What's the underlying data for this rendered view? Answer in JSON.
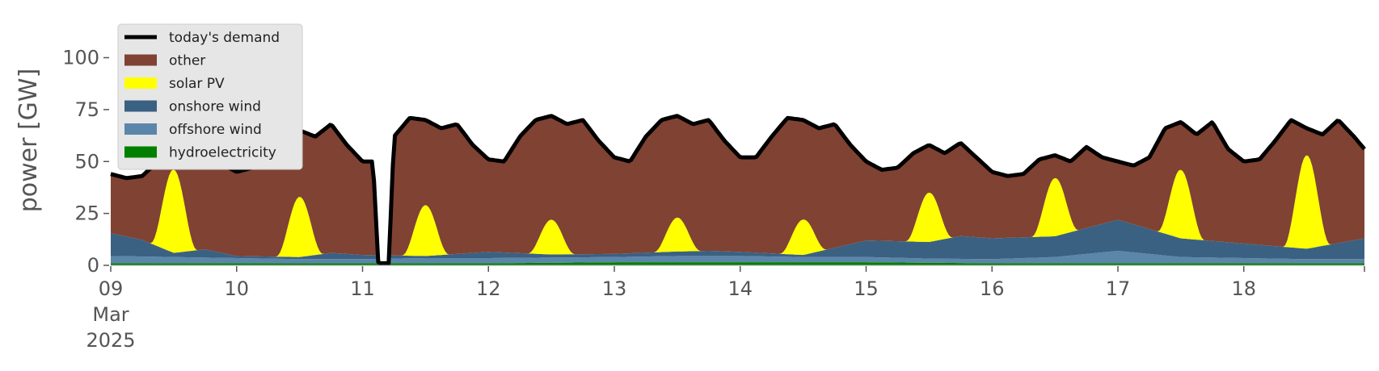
{
  "chart_data": {
    "type": "area",
    "title": "",
    "xlabel": "",
    "ylabel": "power [GW]",
    "ylim": [
      0,
      120
    ],
    "xlim": [
      "2025-03-09 00:00",
      "2025-03-18 23:00"
    ],
    "yticks": [
      0,
      25,
      50,
      75,
      100
    ],
    "xticks": [
      {
        "date": "2025-03-09",
        "label": "09",
        "sublabel": [
          "Mar",
          "2025"
        ]
      },
      {
        "date": "2025-03-10",
        "label": "10"
      },
      {
        "date": "2025-03-11",
        "label": "11"
      },
      {
        "date": "2025-03-12",
        "label": "12"
      },
      {
        "date": "2025-03-13",
        "label": "13"
      },
      {
        "date": "2025-03-14",
        "label": "14"
      },
      {
        "date": "2025-03-15",
        "label": "15"
      },
      {
        "date": "2025-03-16",
        "label": "16"
      },
      {
        "date": "2025-03-17",
        "label": "17"
      },
      {
        "date": "2025-03-18",
        "label": "18"
      }
    ],
    "grid": false,
    "legend_position": "top-left",
    "legend": [
      {
        "label": "today's demand",
        "kind": "line",
        "color": "#000000"
      },
      {
        "label": "other",
        "kind": "patch",
        "color": "#804233"
      },
      {
        "label": "solar PV",
        "kind": "patch",
        "color": "#ffff00"
      },
      {
        "label": "onshore wind",
        "kind": "patch",
        "color": "#3b6182"
      },
      {
        "label": "offshore wind",
        "kind": "patch",
        "color": "#5b86aa"
      },
      {
        "label": "hydroelectricity",
        "kind": "patch",
        "color": "#008000"
      }
    ],
    "stack_order": [
      "hydroelectricity",
      "offshore wind",
      "onshore wind",
      "solar PV",
      "other"
    ],
    "demand": [
      [
        "2025-03-09 00:00",
        44
      ],
      [
        "2025-03-09 03:00",
        42
      ],
      [
        "2025-03-09 06:00",
        43
      ],
      [
        "2025-03-09 09:00",
        50
      ],
      [
        "2025-03-09 12:00",
        54
      ],
      [
        "2025-03-09 15:00",
        51
      ],
      [
        "2025-03-09 18:00",
        56
      ],
      [
        "2025-03-09 21:00",
        49
      ],
      [
        "2025-03-10 00:00",
        45
      ],
      [
        "2025-03-10 03:00",
        47
      ],
      [
        "2025-03-10 06:00",
        60
      ],
      [
        "2025-03-10 09:00",
        68
      ],
      [
        "2025-03-10 12:00",
        65
      ],
      [
        "2025-03-10 15:00",
        62
      ],
      [
        "2025-03-10 18:00",
        68
      ],
      [
        "2025-03-10 21:00",
        58
      ],
      [
        "2025-03-11 00:00",
        50
      ],
      [
        "2025-03-11 02:00",
        50
      ],
      [
        "2025-03-11 03:00",
        1
      ],
      [
        "2025-03-11 05:00",
        1
      ],
      [
        "2025-03-11 06:00",
        62
      ],
      [
        "2025-03-11 09:00",
        71
      ],
      [
        "2025-03-11 12:00",
        70
      ],
      [
        "2025-03-11 15:00",
        66
      ],
      [
        "2025-03-11 18:00",
        68
      ],
      [
        "2025-03-11 21:00",
        58
      ],
      [
        "2025-03-12 00:00",
        51
      ],
      [
        "2025-03-12 03:00",
        50
      ],
      [
        "2025-03-12 06:00",
        62
      ],
      [
        "2025-03-12 09:00",
        70
      ],
      [
        "2025-03-12 12:00",
        72
      ],
      [
        "2025-03-12 15:00",
        68
      ],
      [
        "2025-03-12 18:00",
        70
      ],
      [
        "2025-03-12 21:00",
        60
      ],
      [
        "2025-03-13 00:00",
        52
      ],
      [
        "2025-03-13 03:00",
        50
      ],
      [
        "2025-03-13 06:00",
        62
      ],
      [
        "2025-03-13 09:00",
        70
      ],
      [
        "2025-03-13 12:00",
        72
      ],
      [
        "2025-03-13 15:00",
        68
      ],
      [
        "2025-03-13 18:00",
        70
      ],
      [
        "2025-03-13 21:00",
        60
      ],
      [
        "2025-03-14 00:00",
        52
      ],
      [
        "2025-03-14 03:00",
        52
      ],
      [
        "2025-03-14 06:00",
        62
      ],
      [
        "2025-03-14 09:00",
        71
      ],
      [
        "2025-03-14 12:00",
        70
      ],
      [
        "2025-03-14 15:00",
        66
      ],
      [
        "2025-03-14 18:00",
        68
      ],
      [
        "2025-03-14 21:00",
        58
      ],
      [
        "2025-03-15 00:00",
        50
      ],
      [
        "2025-03-15 03:00",
        46
      ],
      [
        "2025-03-15 06:00",
        47
      ],
      [
        "2025-03-15 09:00",
        54
      ],
      [
        "2025-03-15 12:00",
        58
      ],
      [
        "2025-03-15 15:00",
        54
      ],
      [
        "2025-03-15 18:00",
        59
      ],
      [
        "2025-03-15 21:00",
        52
      ],
      [
        "2025-03-16 00:00",
        45
      ],
      [
        "2025-03-16 03:00",
        43
      ],
      [
        "2025-03-16 06:00",
        44
      ],
      [
        "2025-03-16 09:00",
        51
      ],
      [
        "2025-03-16 12:00",
        53
      ],
      [
        "2025-03-16 15:00",
        50
      ],
      [
        "2025-03-16 18:00",
        57
      ],
      [
        "2025-03-16 21:00",
        52
      ],
      [
        "2025-03-17 00:00",
        50
      ],
      [
        "2025-03-17 03:00",
        48
      ],
      [
        "2025-03-17 06:00",
        52
      ],
      [
        "2025-03-17 09:00",
        66
      ],
      [
        "2025-03-17 12:00",
        69
      ],
      [
        "2025-03-17 15:00",
        63
      ],
      [
        "2025-03-17 18:00",
        69
      ],
      [
        "2025-03-17 21:00",
        56
      ],
      [
        "2025-03-18 00:00",
        50
      ],
      [
        "2025-03-18 03:00",
        51
      ],
      [
        "2025-03-18 06:00",
        60
      ],
      [
        "2025-03-18 09:00",
        70
      ],
      [
        "2025-03-18 12:00",
        66
      ],
      [
        "2025-03-18 15:00",
        63
      ],
      [
        "2025-03-18 18:00",
        70
      ],
      [
        "2025-03-18 21:00",
        62
      ],
      [
        "2025-03-18 23:00",
        56
      ]
    ],
    "hydroelectricity": [
      [
        "2025-03-09 00:00",
        1.0
      ],
      [
        "2025-03-10 00:00",
        1.0
      ],
      [
        "2025-03-11 00:00",
        1.0
      ],
      [
        "2025-03-12 00:00",
        1.0
      ],
      [
        "2025-03-13 00:00",
        1.5
      ],
      [
        "2025-03-14 00:00",
        1.5
      ],
      [
        "2025-03-15 00:00",
        1.5
      ],
      [
        "2025-03-16 00:00",
        1.0
      ],
      [
        "2025-03-17 00:00",
        1.0
      ],
      [
        "2025-03-18 00:00",
        1.0
      ],
      [
        "2025-03-18 23:00",
        1.0
      ]
    ],
    "offshore_wind": [
      [
        "2025-03-09 00:00",
        3.5
      ],
      [
        "2025-03-09 12:00",
        3.0
      ],
      [
        "2025-03-10 00:00",
        2.5
      ],
      [
        "2025-03-10 12:00",
        2.0
      ],
      [
        "2025-03-11 00:00",
        2.0
      ],
      [
        "2025-03-11 12:00",
        2.5
      ],
      [
        "2025-03-12 00:00",
        2.5
      ],
      [
        "2025-03-12 12:00",
        2.5
      ],
      [
        "2025-03-13 00:00",
        2.5
      ],
      [
        "2025-03-13 12:00",
        3.0
      ],
      [
        "2025-03-14 00:00",
        3.0
      ],
      [
        "2025-03-14 12:00",
        2.5
      ],
      [
        "2025-03-15 00:00",
        2.5
      ],
      [
        "2025-03-15 12:00",
        2.0
      ],
      [
        "2025-03-16 00:00",
        2.0
      ],
      [
        "2025-03-16 12:00",
        3.0
      ],
      [
        "2025-03-17 00:00",
        6.0
      ],
      [
        "2025-03-17 12:00",
        3.0
      ],
      [
        "2025-03-18 00:00",
        2.5
      ],
      [
        "2025-03-18 12:00",
        2.0
      ],
      [
        "2025-03-18 23:00",
        2.0
      ]
    ],
    "onshore_wind": [
      [
        "2025-03-09 00:00",
        11.0
      ],
      [
        "2025-03-09 06:00",
        8.0
      ],
      [
        "2025-03-09 12:00",
        2.0
      ],
      [
        "2025-03-09 18:00",
        4.0
      ],
      [
        "2025-03-10 00:00",
        1.0
      ],
      [
        "2025-03-10 12:00",
        1.0
      ],
      [
        "2025-03-10 18:00",
        3.0
      ],
      [
        "2025-03-11 00:00",
        2.0
      ],
      [
        "2025-03-11 12:00",
        1.0
      ],
      [
        "2025-03-12 00:00",
        3.0
      ],
      [
        "2025-03-12 12:00",
        1.5
      ],
      [
        "2025-03-13 00:00",
        1.5
      ],
      [
        "2025-03-13 18:00",
        2.5
      ],
      [
        "2025-03-14 00:00",
        2.0
      ],
      [
        "2025-03-14 12:00",
        1.0
      ],
      [
        "2025-03-15 00:00",
        8.0
      ],
      [
        "2025-03-15 12:00",
        8.0
      ],
      [
        "2025-03-15 18:00",
        11.0
      ],
      [
        "2025-03-16 00:00",
        10.0
      ],
      [
        "2025-03-16 12:00",
        10.0
      ],
      [
        "2025-03-17 00:00",
        15.0
      ],
      [
        "2025-03-17 12:00",
        9.0
      ],
      [
        "2025-03-18 00:00",
        7.0
      ],
      [
        "2025-03-18 12:00",
        5.0
      ],
      [
        "2025-03-18 23:00",
        10.0
      ]
    ],
    "solar_pv": {
      "peak_times": [
        "2025-03-09 12:00",
        "2025-03-10 12:00",
        "2025-03-11 12:00",
        "2025-03-12 12:00",
        "2025-03-13 12:00",
        "2025-03-14 12:00",
        "2025-03-15 12:00",
        "2025-03-16 12:00",
        "2025-03-17 12:00",
        "2025-03-18 12:00"
      ],
      "peak_totals": [
        46,
        33,
        29,
        22,
        23,
        22,
        35,
        42,
        46,
        53
      ]
    }
  }
}
